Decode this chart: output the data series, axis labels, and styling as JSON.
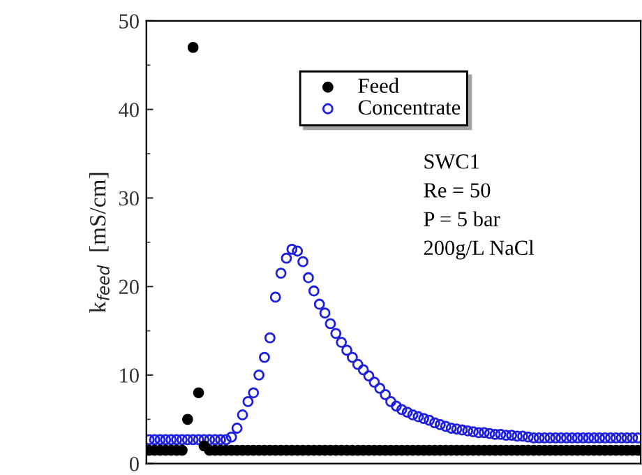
{
  "chart_data": {
    "type": "scatter",
    "ylabel": "k$_{feed}$  [mS/cm]",
    "categories": [
      null,
      null,
      null,
      null,
      null,
      null,
      null,
      null,
      null,
      null,
      null,
      null,
      null,
      null,
      null,
      null,
      null,
      null,
      null,
      null,
      null,
      null,
      null,
      null,
      null,
      null,
      null,
      null,
      null,
      null,
      null,
      null,
      null,
      null,
      null,
      null,
      null,
      null,
      null,
      null,
      null,
      null,
      null,
      null,
      null,
      null,
      null,
      null,
      null,
      null,
      null,
      null,
      null,
      null,
      null,
      null,
      null,
      null,
      null,
      null,
      null,
      null,
      null,
      null,
      null,
      null,
      null,
      null,
      null,
      null,
      null,
      null,
      null,
      null,
      null,
      null,
      null,
      null,
      null,
      null,
      null,
      null,
      null,
      null,
      null,
      null,
      null,
      null,
      null,
      null
    ],
    "series": [
      {
        "name": "Feed",
        "color": "#000000",
        "marker": "circle",
        "values": [
          1.5,
          1.5,
          1.5,
          1.5,
          1.5,
          1.5,
          1.5,
          5,
          47,
          8,
          2,
          1.5,
          1.5,
          1.5,
          1.5,
          1.5,
          1.5,
          1.5,
          1.5,
          1.5,
          1.5,
          1.5,
          1.5,
          1.5,
          1.5,
          1.5,
          1.5,
          1.5,
          1.5,
          1.5,
          1.5,
          1.5,
          1.5,
          1.5,
          1.5,
          1.5,
          1.5,
          1.5,
          1.5,
          1.5,
          1.5,
          1.5,
          1.5,
          1.5,
          1.5,
          1.5,
          1.5,
          1.5,
          1.5,
          1.5,
          1.5,
          1.5,
          1.5,
          1.5,
          1.5,
          1.5,
          1.5,
          1.5,
          1.5,
          1.5,
          1.5,
          1.5,
          1.5,
          1.5,
          1.5,
          1.5,
          1.5,
          1.5,
          1.5,
          1.5,
          1.5,
          1.5,
          1.5,
          1.5,
          1.5,
          1.5,
          1.5,
          1.5,
          1.5,
          1.5,
          1.5,
          1.5,
          1.5,
          1.5,
          1.5,
          1.5,
          1.5,
          1.5,
          1.5,
          1.5
        ]
      },
      {
        "name": "Concentrate",
        "color": "#1f1fe0",
        "marker": "circle",
        "values": [
          2.7,
          2.7,
          2.7,
          2.7,
          2.7,
          2.7,
          2.7,
          2.7,
          2.7,
          2.7,
          2.7,
          2.7,
          2.7,
          2.7,
          2.7,
          3.0,
          4.0,
          5.5,
          7.0,
          8.0,
          10.0,
          12.0,
          14.2,
          18.8,
          21.5,
          23.2,
          24.2,
          24.0,
          22.8,
          21.0,
          19.5,
          18.0,
          17.0,
          15.8,
          14.7,
          13.7,
          12.8,
          12.0,
          11.2,
          10.6,
          9.9,
          9.2,
          8.5,
          7.8,
          7.0,
          6.5,
          6.1,
          5.8,
          5.5,
          5.3,
          5.1,
          4.9,
          4.6,
          4.4,
          4.2,
          4.0,
          3.9,
          3.8,
          3.7,
          3.6,
          3.5,
          3.5,
          3.4,
          3.3,
          3.3,
          3.2,
          3.2,
          3.1,
          3.1,
          3.0,
          2.9,
          2.9,
          2.9,
          2.9,
          2.9,
          2.9,
          2.9,
          2.9,
          2.9,
          2.9,
          2.9,
          2.9,
          2.9,
          2.9,
          2.9,
          2.9,
          2.9,
          2.9,
          2.9,
          2.9
        ]
      }
    ],
    "ylim": [
      0,
      50
    ],
    "yticks": [
      0,
      10,
      20,
      30,
      40,
      50
    ],
    "tick_labels": "y",
    "grid": false,
    "legend": "top",
    "annotations": [
      "SWC1",
      "Re = 50",
      "P = 5 bar",
      "200g/L NaCl"
    ]
  }
}
